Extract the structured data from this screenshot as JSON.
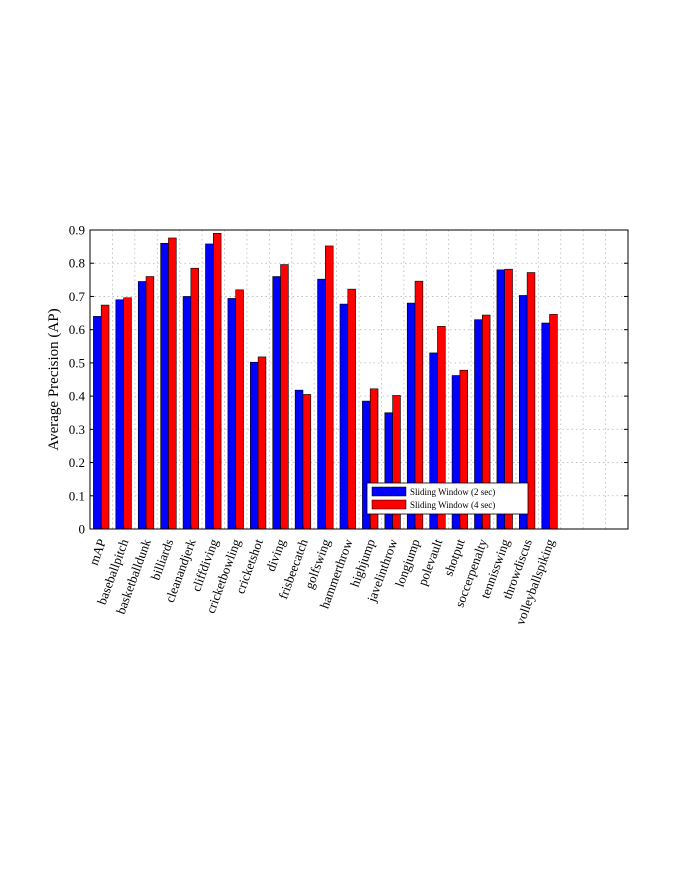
{
  "chart_data": {
    "type": "bar",
    "ylabel": "Average Precision (AP)",
    "xlabel": "",
    "ylim": [
      0,
      0.9
    ],
    "yticks": [
      0,
      0.1,
      0.2,
      0.3,
      0.4,
      0.5,
      0.6,
      0.7,
      0.8,
      0.9
    ],
    "ytick_labels": [
      "0",
      "0.1",
      "0.2",
      "0.3",
      "0.4",
      "0.5",
      "0.6",
      "0.7",
      "0.8",
      "0.9"
    ],
    "grid": true,
    "legend_position": "bottom-right",
    "categories": [
      "mAP",
      "baseballpitch",
      "basketballdunk",
      "billiards",
      "cleanandjerk",
      "cliffdiving",
      "cricketbowling",
      "cricketshot",
      "diving",
      "frisbeecatch",
      "golfswing",
      "hammerthrow",
      "highjump",
      "javelinthrow",
      "longjump",
      "polevault",
      "shotput",
      "soccerpenalty",
      "tennisswing",
      "throwdiscus",
      "volleyballspiking"
    ],
    "series": [
      {
        "name": "Sliding Window (2 sec)",
        "color": "#0000ff",
        "values": [
          0.64,
          0.69,
          0.745,
          0.86,
          0.7,
          0.858,
          0.694,
          0.502,
          0.76,
          0.418,
          0.752,
          0.677,
          0.385,
          0.35,
          0.68,
          0.53,
          0.462,
          0.63,
          0.78,
          0.703,
          0.62
        ]
      },
      {
        "name": "Sliding Window (4 sec)",
        "color": "#ff0000",
        "values": [
          0.674,
          0.696,
          0.76,
          0.876,
          0.785,
          0.89,
          0.72,
          0.518,
          0.796,
          0.405,
          0.852,
          0.722,
          0.422,
          0.402,
          0.746,
          0.61,
          0.478,
          0.644,
          0.782,
          0.772,
          0.646
        ]
      }
    ]
  }
}
